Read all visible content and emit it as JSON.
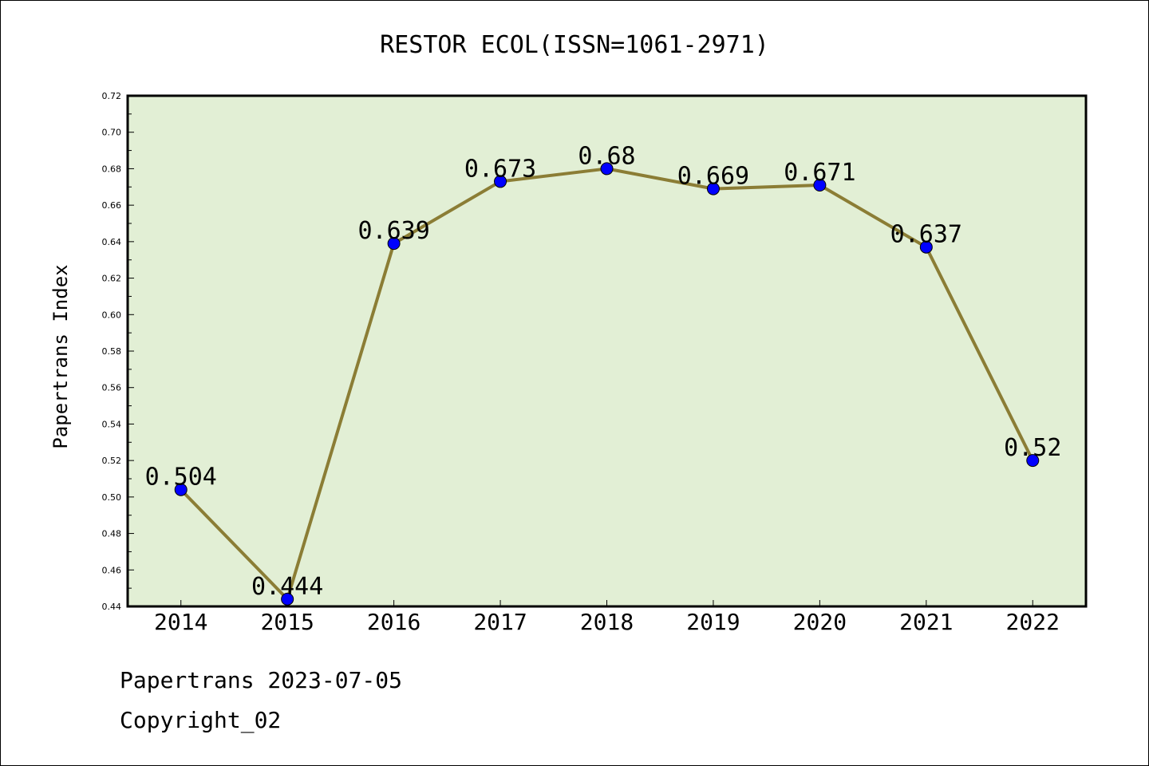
{
  "chart_data": {
    "type": "line",
    "title": "RESTOR ECOL(ISSN=1061-2971)",
    "xlabel": "",
    "ylabel": "Papertrans Index",
    "categories": [
      "2014",
      "2015",
      "2016",
      "2017",
      "2018",
      "2019",
      "2020",
      "2021",
      "2022"
    ],
    "series": [
      {
        "values": [
          0.504,
          0.444,
          0.639,
          0.673,
          0.68,
          0.669,
          0.671,
          0.637,
          0.52
        ],
        "labels": [
          "0.504",
          "0.444",
          "0.639",
          "0.673",
          "0.68",
          "0.669",
          "0.671",
          "0.637",
          "0.52"
        ]
      }
    ],
    "ylim": [
      0.44,
      0.72
    ],
    "yticks": [
      "0.44",
      "0.46",
      "0.48",
      "0.50",
      "0.52",
      "0.54",
      "0.56",
      "0.58",
      "0.60",
      "0.62",
      "0.64",
      "0.66",
      "0.68",
      "0.70",
      "0.72"
    ],
    "grid": false,
    "colors": {
      "plot_background": "#e2efd5",
      "line": "#8b7d35",
      "marker": "#0000ff"
    }
  },
  "footer": {
    "line1": "Papertrans 2023-07-05",
    "line2": "Copyright_02"
  }
}
